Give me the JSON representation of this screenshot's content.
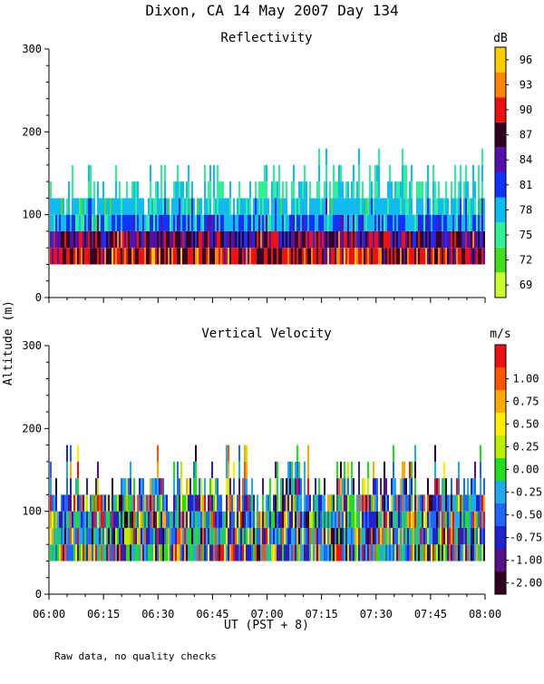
{
  "figure": {
    "title": "Dixon, CA 14 May 2007  Day 134",
    "ylabel": "Altitude (m)",
    "xlabel": "UT  (PST + 8)",
    "footnote": "Raw data, no quality checks"
  },
  "chart_data": [
    {
      "type": "heatmap",
      "title": "Reflectivity",
      "ylim": [
        0,
        300
      ],
      "yticks": [
        "0",
        "100",
        "200",
        "300"
      ],
      "xticks": [
        "06:00",
        "06:15",
        "06:30",
        "06:45",
        "07:00",
        "07:15",
        "07:30",
        "07:45",
        "08:00"
      ],
      "xlim": [
        "06:00",
        "08:00"
      ],
      "data_floor_m": 40,
      "echo_top_m": {
        "typical": 120,
        "peak": 180
      },
      "colorbar": {
        "unit": "dB",
        "labels": [
          "69",
          "72",
          "75",
          "78",
          "81",
          "84",
          "87",
          "90",
          "93",
          "96"
        ],
        "colors": [
          "#ccff33",
          "#44dd22",
          "#33ee99",
          "#11bbee",
          "#1133ff",
          "#5511aa",
          "#330022",
          "#ee1111",
          "#ff8800",
          "#ffcc00"
        ]
      }
    },
    {
      "type": "heatmap",
      "title": "Vertical Velocity",
      "ylim": [
        0,
        300
      ],
      "yticks": [
        "0",
        "100",
        "200",
        "300"
      ],
      "xticks": [
        "06:00",
        "06:15",
        "06:30",
        "06:45",
        "07:00",
        "07:15",
        "07:30",
        "07:45",
        "08:00"
      ],
      "xlim": [
        "06:00",
        "08:00"
      ],
      "data_floor_m": 40,
      "echo_top_m": {
        "typical": 120,
        "peak": 180
      },
      "colorbar": {
        "unit": "m/s",
        "labels": [
          "-2.00",
          "-1.00",
          "-0.75",
          "-0.50",
          "-0.25",
          "0.00",
          "0.25",
          "0.50",
          "0.75",
          "1.00"
        ],
        "colors": [
          "#330022",
          "#551188",
          "#2222cc",
          "#2266ff",
          "#22aaee",
          "#22dd22",
          "#bbee00",
          "#ffee00",
          "#ffaa00",
          "#ff5500",
          "#ee1111"
        ]
      }
    }
  ]
}
